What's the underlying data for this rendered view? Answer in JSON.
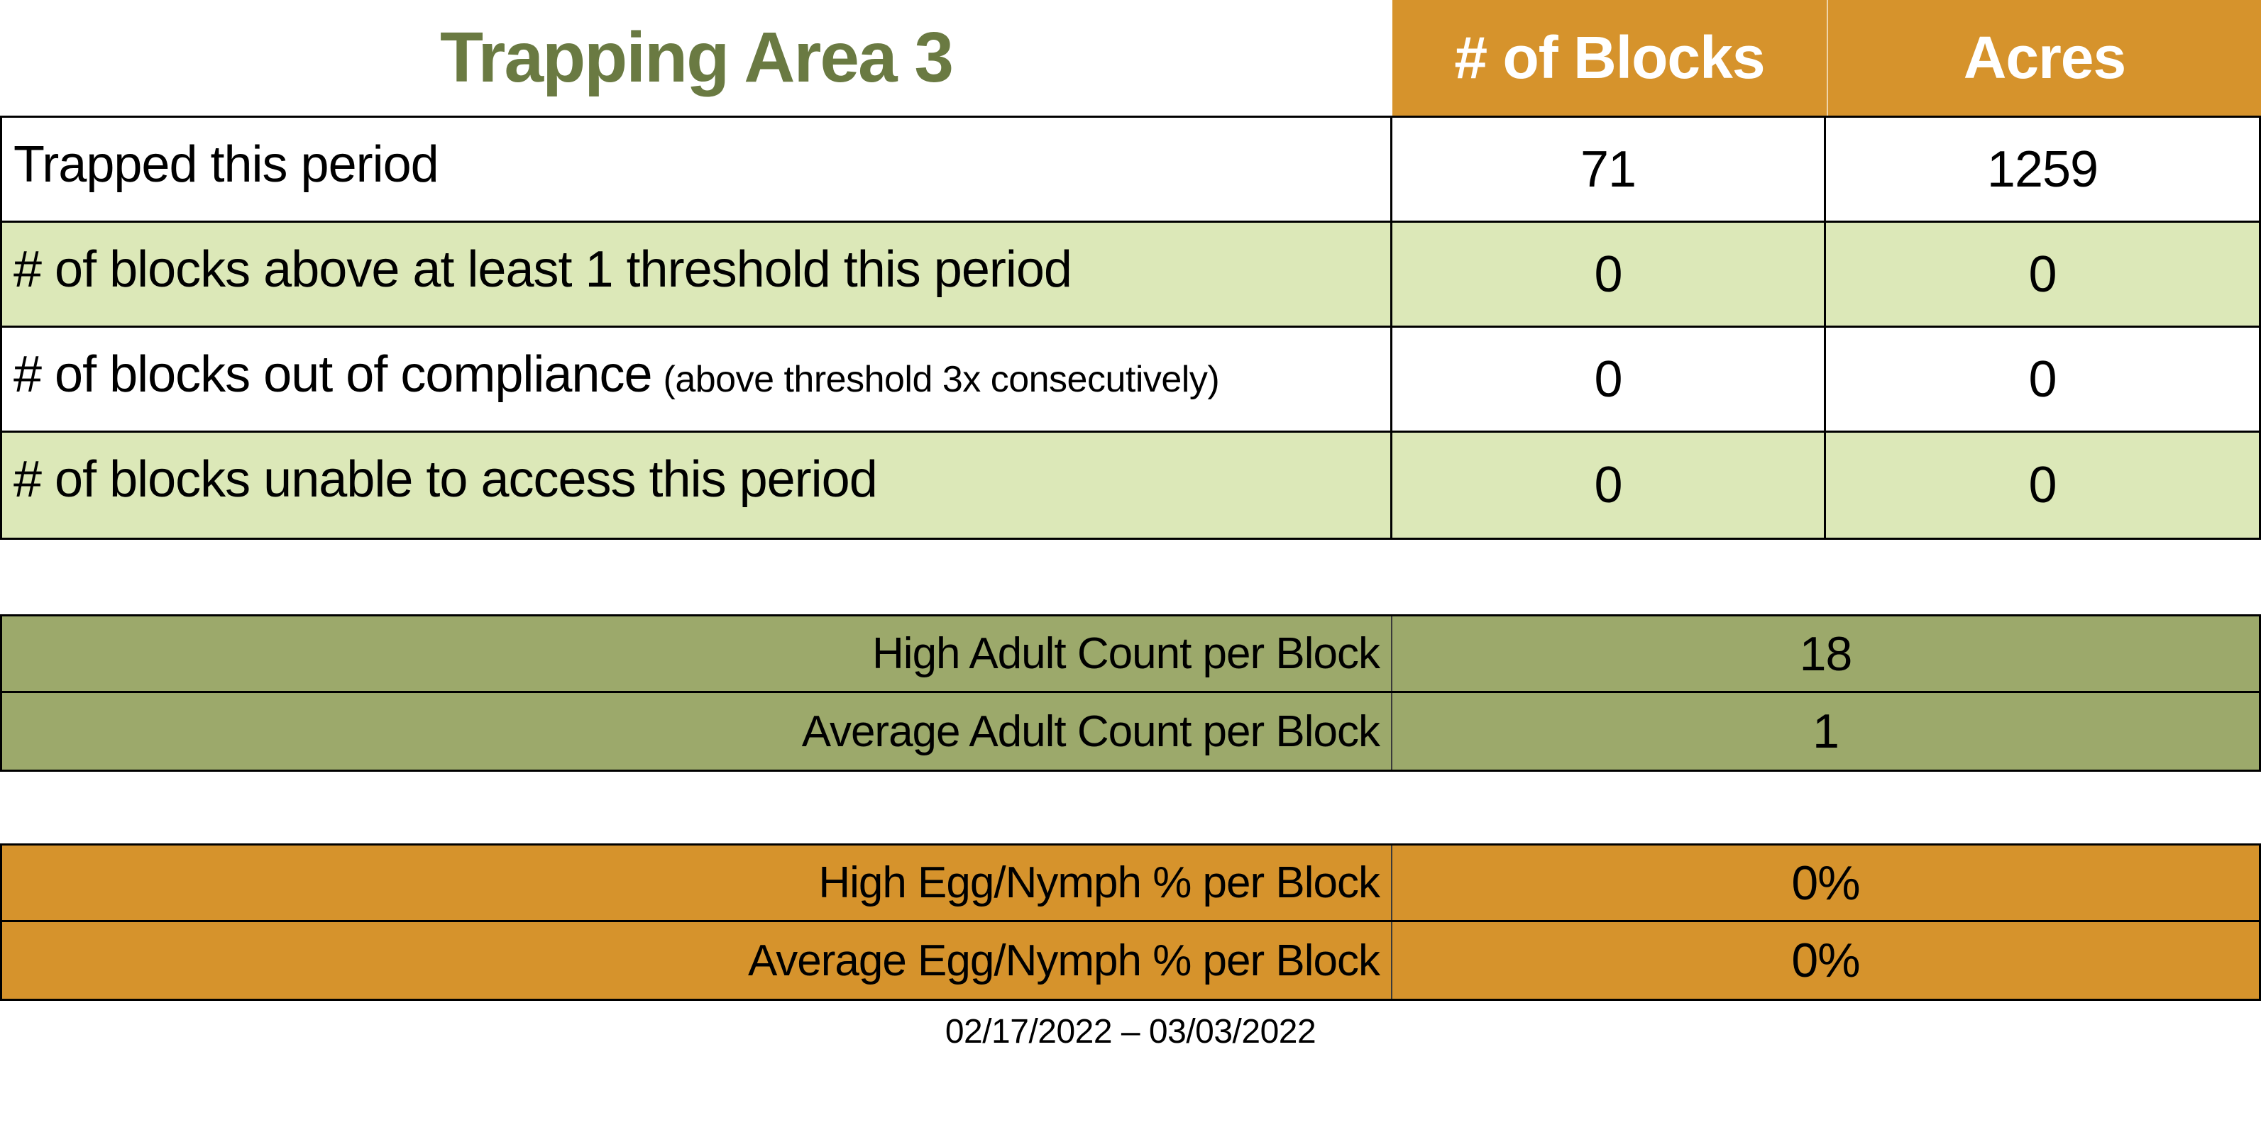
{
  "page": {
    "title": "Trapping Area 3"
  },
  "colors": {
    "header_orange": "#D6932C",
    "band_olive": "#9CA96B",
    "row_light_green": "#DCE8B8",
    "title_green": "#6A7A42",
    "border_black": "#000000",
    "header_text_white": "#FFFFFF"
  },
  "header": {
    "columns": [
      "# of Blocks",
      "Acres"
    ]
  },
  "main_table": {
    "rows": [
      {
        "label": "Trapped this period",
        "blocks": "71",
        "acres": "1259"
      },
      {
        "label": "# of blocks above at least 1 threshold this period",
        "blocks": "0",
        "acres": "0"
      },
      {
        "label": "# of blocks out of compliance",
        "note": "(above threshold 3x consecutively)",
        "blocks": "0",
        "acres": "0"
      },
      {
        "label": "# of blocks unable to access this period",
        "blocks": "0",
        "acres": "0"
      }
    ]
  },
  "adult_counts": {
    "rows": [
      {
        "label": "High Adult Count per Block",
        "value": "18"
      },
      {
        "label": "Average Adult Count per Block",
        "value": "1"
      }
    ]
  },
  "egg_nymph": {
    "rows": [
      {
        "label": "High Egg/Nymph % per Block",
        "value": "0%"
      },
      {
        "label": "Average Egg/Nymph % per Block",
        "value": "0%"
      }
    ]
  },
  "footer": {
    "date_range": "02/17/2022 – 03/03/2022"
  },
  "chart_data": {
    "type": "table",
    "title": "Trapping Area 3",
    "columns": [
      "",
      "# of Blocks",
      "Acres"
    ],
    "rows": [
      [
        "Trapped this period",
        71,
        1259
      ],
      [
        "# of blocks above at least 1 threshold this period",
        0,
        0
      ],
      [
        "# of blocks out of compliance (above threshold 3x consecutively)",
        0,
        0
      ],
      [
        "# of blocks unable to access this period",
        0,
        0
      ]
    ],
    "summary_tables": [
      {
        "theme": "olive",
        "rows": [
          [
            "High Adult Count per Block",
            18
          ],
          [
            "Average Adult Count per Block",
            1
          ]
        ]
      },
      {
        "theme": "orange",
        "rows": [
          [
            "High Egg/Nymph % per Block",
            "0%"
          ],
          [
            "Average Egg/Nymph % per Block",
            "0%"
          ]
        ]
      }
    ],
    "footnote": "02/17/2022 – 03/03/2022"
  }
}
